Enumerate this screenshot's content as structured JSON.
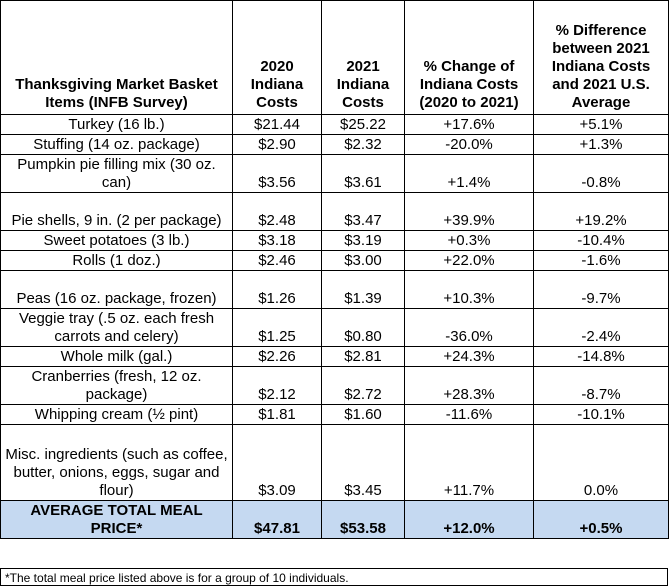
{
  "headers": [
    "Thanksgiving Market Basket Items (INFB Survey)",
    "2020 Indiana Costs",
    "2021 Indiana Costs",
    "% Change of Indiana Costs (2020 to 2021)",
    "% Difference between 2021 Indiana Costs and 2021 U.S. Average"
  ],
  "rows": [
    [
      "Turkey (16 lb.)",
      "$21.44",
      "$25.22",
      "+17.6%",
      "+5.1%"
    ],
    [
      "Stuffing (14 oz. package)",
      "$2.90",
      "$2.32",
      "-20.0%",
      "+1.3%"
    ],
    [
      "Pumpkin pie filling mix (30 oz. can)",
      "$3.56",
      "$3.61",
      "+1.4%",
      "-0.8%"
    ],
    [
      "Pie shells, 9 in. (2 per package)",
      "$2.48",
      "$3.47",
      "+39.9%",
      "+19.2%"
    ],
    [
      "Sweet potatoes (3 lb.)",
      "$3.18",
      "$3.19",
      "+0.3%",
      "-10.4%"
    ],
    [
      "Rolls (1 doz.)",
      "$2.46",
      "$3.00",
      "+22.0%",
      "-1.6%"
    ],
    [
      "Peas (16 oz. package, frozen)",
      "$1.26",
      "$1.39",
      "+10.3%",
      "-9.7%"
    ],
    [
      "Veggie tray (.5 oz. each fresh carrots and celery)",
      "$1.25",
      "$0.80",
      "-36.0%",
      "-2.4%"
    ],
    [
      "Whole milk (gal.)",
      "$2.26",
      "$2.81",
      "+24.3%",
      "-14.8%"
    ],
    [
      "Cranberries (fresh, 12 oz. package)",
      "$2.12",
      "$2.72",
      "+28.3%",
      "-8.7%"
    ],
    [
      "Whipping cream (½ pint)",
      "$1.81",
      "$1.60",
      "-11.6%",
      "-10.1%"
    ],
    [
      "Misc. ingredients (such as coffee, butter, onions, eggs, sugar and flour)",
      "$3.09",
      "$3.45",
      "+11.7%",
      "0.0%"
    ]
  ],
  "total": [
    "AVERAGE TOTAL MEAL PRICE*",
    "$47.81",
    "$53.58",
    "+12.0%",
    "+0.5%"
  ],
  "footnote": "*The total meal price listed above is for a group of 10 individuals.",
  "colors": {
    "total_row_bg": "#c5d9f1"
  }
}
